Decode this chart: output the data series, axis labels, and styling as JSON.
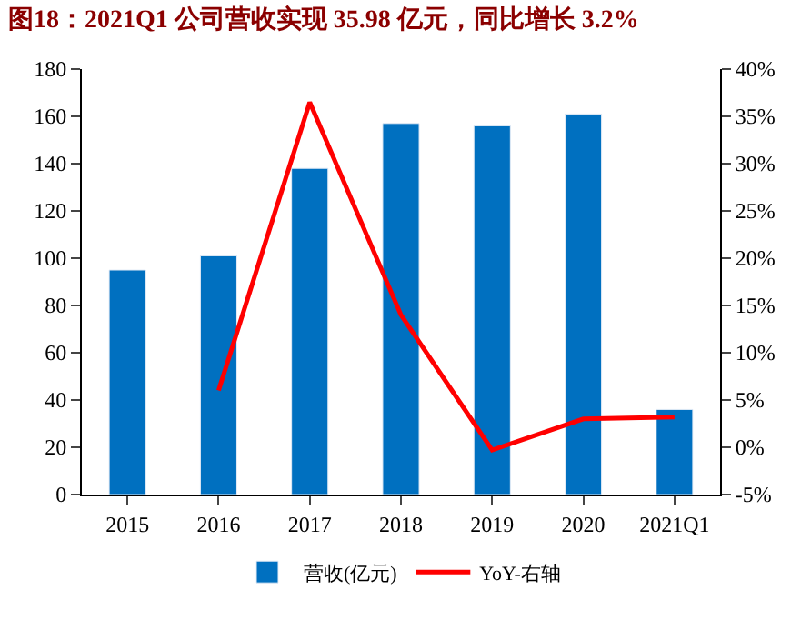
{
  "chart_data": {
    "type": "bar",
    "title": "图18：2021Q1 公司营收实现 35.98 亿元，同比增长 3.2%",
    "categories": [
      "2015",
      "2016",
      "2017",
      "2018",
      "2019",
      "2020",
      "2021Q1"
    ],
    "series": [
      {
        "name": "营收(亿元)",
        "color": "#0070c0",
        "values": [
          95,
          101,
          138,
          157,
          156,
          161,
          36
        ]
      },
      {
        "name": "YoY-右轴",
        "type": "line",
        "axis": "y2",
        "color": "#ff0000",
        "values": [
          null,
          6,
          36.5,
          14,
          -0.3,
          3,
          3.2
        ]
      }
    ],
    "ylim": [
      0,
      180
    ],
    "yticks": [
      0,
      20,
      40,
      60,
      80,
      100,
      120,
      140,
      160,
      180
    ],
    "y2lim": [
      -5,
      40
    ],
    "y2ticks": [
      {
        "value": -5,
        "label": "-5%"
      },
      {
        "value": 0,
        "label": "0%"
      },
      {
        "value": 5,
        "label": "5%"
      },
      {
        "value": 10,
        "label": "10%"
      },
      {
        "value": 15,
        "label": "15%"
      },
      {
        "value": 20,
        "label": "20%"
      },
      {
        "value": 25,
        "label": "25%"
      },
      {
        "value": 30,
        "label": "30%"
      },
      {
        "value": 35,
        "label": "35%"
      },
      {
        "value": 40,
        "label": "40%"
      }
    ],
    "legend": "bottom",
    "marker": "none",
    "line_style": "solid"
  }
}
